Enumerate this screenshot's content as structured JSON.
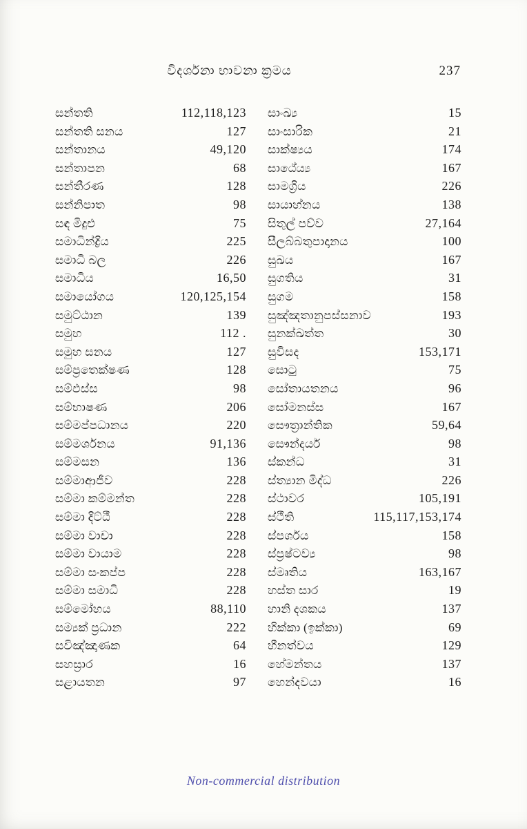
{
  "header": {
    "title": "විදර්ශනා භාවනා ක්‍රමය",
    "page_number": "237"
  },
  "index": {
    "columns": [
      {
        "name": "left",
        "entries": [
          {
            "term": "සන්තති",
            "pages": "112,118,123"
          },
          {
            "term": "සන්තති සනය",
            "pages": "127"
          },
          {
            "term": "සන්තානය",
            "pages": "49,120"
          },
          {
            "term": "සන්තාපන",
            "pages": "68"
          },
          {
            "term": "සන්තීරණ",
            "pages": "128"
          },
          {
            "term": "සන්නිපාත",
            "pages": "98"
          },
          {
            "term": "සඳ මිදුළු",
            "pages": "75"
          },
          {
            "term": "සමාධින්ද්‍රිය",
            "pages": "225"
          },
          {
            "term": "සමාධි බල",
            "pages": "226"
          },
          {
            "term": "සමාධිය",
            "pages": "16,50"
          },
          {
            "term": "සමායෝගය",
            "pages": "120,125,154"
          },
          {
            "term": "සමුට්ඨාන",
            "pages": "139"
          },
          {
            "term": "සමුහ",
            "pages": "112 ."
          },
          {
            "term": "සමුහ සනය",
            "pages": "127"
          },
          {
            "term": "සම්ප්‍රතෙක්ෂණ",
            "pages": "128"
          },
          {
            "term": "සම්ඵස්ස",
            "pages": "98"
          },
          {
            "term": "සම්භාෂණ",
            "pages": "206"
          },
          {
            "term": "සම්මප්පධානය",
            "pages": "220"
          },
          {
            "term": "සම්මර්ශනය",
            "pages": "91,136"
          },
          {
            "term": "සම්මසන",
            "pages": "136"
          },
          {
            "term": "සම්මාආජීව",
            "pages": "228"
          },
          {
            "term": "සම්මා කම්මන්ත",
            "pages": "228"
          },
          {
            "term": "සම්මා දිට්ඨී",
            "pages": "228"
          },
          {
            "term": "සම්මා වාචා",
            "pages": "228"
          },
          {
            "term": "සම්මා වායාම",
            "pages": "228"
          },
          {
            "term": "සම්මා සංකප්ප",
            "pages": "228"
          },
          {
            "term": "සම්මා සමාධි",
            "pages": "228"
          },
          {
            "term": "සම්මෝහය",
            "pages": "88,110"
          },
          {
            "term": "සම්‍යක් ප්‍රධාන",
            "pages": "222"
          },
          {
            "term": "සවිඤ්ඤාණක",
            "pages": "64"
          },
          {
            "term": "සහස්‍රාර",
            "pages": "16"
          },
          {
            "term": "සළායතන",
            "pages": "97"
          }
        ]
      },
      {
        "name": "right",
        "entries": [
          {
            "term": "සාංඛ්‍ය",
            "pages": "15"
          },
          {
            "term": "සාංසාරික",
            "pages": "21"
          },
          {
            "term": "සාක්ෂ්‍යය",
            "pages": "174"
          },
          {
            "term": "සාඨේය්‍ය",
            "pages": "167"
          },
          {
            "term": "සාමග්‍රිය",
            "pages": "226"
          },
          {
            "term": "සායාහ්නය",
            "pages": "138"
          },
          {
            "term": "සිතුල් පව්ව",
            "pages": "27,164"
          },
          {
            "term": "සීලබ්බතුපාදානය",
            "pages": "100"
          },
          {
            "term": "සුඛය",
            "pages": "167"
          },
          {
            "term": "සුගතිය",
            "pages": "31"
          },
          {
            "term": "සුගම",
            "pages": "158"
          },
          {
            "term": "සුඤ්ඤතානුපස්සනාව",
            "pages": "193"
          },
          {
            "term": "සුනක්ඛත්ත",
            "pages": "30"
          },
          {
            "term": "සුවිසද",
            "pages": "153,171"
          },
          {
            "term": "සොටු",
            "pages": "75"
          },
          {
            "term": "සෝතායතනය",
            "pages": "96"
          },
          {
            "term": "සෝමනස්ස",
            "pages": "167"
          },
          {
            "term": "සෞත්‍රාන්තික",
            "pages": "59,64"
          },
          {
            "term": "සෞන්දර්ය",
            "pages": "98"
          },
          {
            "term": "ස්කන්ධ",
            "pages": "31"
          },
          {
            "term": "ස්ත්‍යාන මිද්ධ",
            "pages": "226"
          },
          {
            "term": "ස්ථාවර",
            "pages": "105,191"
          },
          {
            "term": "ස්ථීති",
            "pages": "115,117,153,174"
          },
          {
            "term": "ස්පර්ශය",
            "pages": "158"
          },
          {
            "term": "ස්ප්‍රෂ්ටව්‍ය",
            "pages": "98"
          },
          {
            "term": "ස්මෘතිය",
            "pages": "163,167"
          },
          {
            "term": "හස්ත සාර",
            "pages": "19"
          },
          {
            "term": "හානි දශකය",
            "pages": "137"
          },
          {
            "term": "හික්කා (ඉක්කා)",
            "pages": "69"
          },
          {
            "term": "හීනත්වය",
            "pages": "129"
          },
          {
            "term": "හේමන්තය",
            "pages": "137"
          },
          {
            "term": "හෙන්දවයා",
            "pages": "16"
          }
        ]
      }
    ]
  },
  "footer": {
    "note": "Non-commercial distribution"
  },
  "colors": {
    "paper": "#fcfcf9",
    "ink": "#1d1d1d",
    "footer_text": "#4d4dac"
  }
}
